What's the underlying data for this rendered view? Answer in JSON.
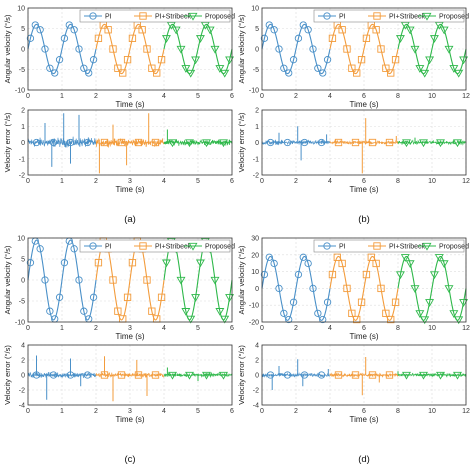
{
  "colors": {
    "pi": "#4a90c8",
    "pi_stribeck": "#f39c3c",
    "proposed": "#2eb84a",
    "axis": "#333333",
    "grid": "#dddddd"
  },
  "legend_entries": [
    "PI",
    "PI+Stribeck",
    "Proposed"
  ],
  "panels": [
    {
      "id": "a",
      "caption": "(a)",
      "top": {
        "type": "line",
        "ylabel": "Angular velocity (°/s)",
        "xlabel": "Time (s)",
        "xlim": [
          0,
          6
        ],
        "ylim": [
          -10,
          10
        ],
        "xticks": [
          "0",
          "1",
          "2",
          "3",
          "4",
          "5",
          "6"
        ],
        "yticks": [
          "10",
          "5",
          "0",
          "-5",
          "-10"
        ],
        "yticks_values": [
          10,
          5,
          0,
          -5,
          -10
        ],
        "amplitude": 6,
        "frequency_hz": 1,
        "legend": true,
        "series": [
          {
            "name": "PI",
            "x_range": [
              0,
              2
            ],
            "color_key": "pi",
            "marker": "circle"
          },
          {
            "name": "PI+Stribeck",
            "x_range": [
              2,
              4
            ],
            "color_key": "pi_stribeck",
            "marker": "square"
          },
          {
            "name": "Proposed",
            "x_range": [
              4,
              6
            ],
            "color_key": "proposed",
            "marker": "triangle"
          }
        ]
      },
      "bottom": {
        "type": "line",
        "ylabel": "Velocity error (°/s)",
        "xlabel": "Time (s)",
        "xlim": [
          0,
          6
        ],
        "ylim": [
          -2,
          2
        ],
        "xticks": [
          "0",
          "1",
          "2",
          "3",
          "4",
          "5",
          "6"
        ],
        "yticks": [
          "2",
          "1",
          "0",
          "-1",
          "-2"
        ],
        "yticks_values": [
          2,
          1,
          0,
          -1,
          -2
        ],
        "noise": [
          0.25,
          0.2,
          0.15
        ],
        "spikes": [
          [
            0.5,
            1.2
          ],
          [
            0.7,
            -1.5
          ],
          [
            1.05,
            1.8
          ],
          [
            1.25,
            -1.3
          ],
          [
            1.5,
            1.7
          ],
          [
            2.1,
            -1.9
          ],
          [
            2.5,
            1.1
          ],
          [
            2.9,
            -1.4
          ],
          [
            3.55,
            1.8
          ],
          [
            4.1,
            0.8
          ]
        ]
      }
    },
    {
      "id": "b",
      "caption": "(b)",
      "top": {
        "type": "line",
        "ylabel": "Angular velocity (°/s)",
        "xlabel": "Time (s)",
        "xlim": [
          0,
          12
        ],
        "ylim": [
          -10,
          10
        ],
        "xticks": [
          "0",
          "2",
          "4",
          "6",
          "8",
          "10",
          "12"
        ],
        "yticks": [
          "10",
          "5",
          "0",
          "-5",
          "-10"
        ],
        "yticks_values": [
          10,
          5,
          0,
          -5,
          -10
        ],
        "amplitude": 6,
        "frequency_hz": 0.5,
        "legend": true,
        "series": [
          {
            "name": "PI",
            "x_range": [
              0,
              4
            ],
            "color_key": "pi",
            "marker": "circle"
          },
          {
            "name": "PI+Stribeck",
            "x_range": [
              4,
              8
            ],
            "color_key": "pi_stribeck",
            "marker": "square"
          },
          {
            "name": "Proposed",
            "x_range": [
              8,
              12
            ],
            "color_key": "proposed",
            "marker": "triangle"
          }
        ]
      },
      "bottom": {
        "type": "line",
        "ylabel": "Velocity error (°/s)",
        "xlabel": "Time (s)",
        "xlim": [
          0,
          12
        ],
        "ylim": [
          -2,
          2
        ],
        "xticks": [
          "0",
          "2",
          "4",
          "6",
          "8",
          "10",
          "12"
        ],
        "yticks": [
          "2",
          "1",
          "0",
          "-1",
          "-2"
        ],
        "yticks_values": [
          2,
          1,
          0,
          -1,
          -2
        ],
        "noise": [
          0.12,
          0.1,
          0.1
        ],
        "spikes": [
          [
            1.0,
            0.6
          ],
          [
            2.1,
            1.0
          ],
          [
            2.3,
            -1.1
          ],
          [
            3.8,
            0.5
          ],
          [
            5.9,
            -1.9
          ],
          [
            6.1,
            1.5
          ],
          [
            7.9,
            0.4
          ],
          [
            9.0,
            0.3
          ]
        ]
      }
    },
    {
      "id": "c",
      "caption": "(c)",
      "top": {
        "type": "line",
        "ylabel": "Angular velocity (°/s)",
        "xlabel": "Time (s)",
        "xlim": [
          0,
          6
        ],
        "ylim": [
          -10,
          10
        ],
        "xticks": [
          "0",
          "1",
          "2",
          "3",
          "4",
          "5",
          "6"
        ],
        "yticks": [
          "10",
          "5",
          "0",
          "-5",
          "-10"
        ],
        "yticks_values": [
          10,
          5,
          0,
          -5,
          -10
        ],
        "amplitude": 9.5,
        "frequency_hz": 1,
        "legend": true,
        "series": [
          {
            "name": "PI",
            "x_range": [
              0,
              2
            ],
            "color_key": "pi",
            "marker": "circle"
          },
          {
            "name": "PI+Stribeck",
            "x_range": [
              2,
              4
            ],
            "color_key": "pi_stribeck",
            "marker": "square"
          },
          {
            "name": "Proposed",
            "x_range": [
              4,
              6
            ],
            "color_key": "proposed",
            "marker": "triangle"
          }
        ]
      },
      "bottom": {
        "type": "line",
        "ylabel": "Velocity error (°/s)",
        "xlabel": "Time (s)",
        "xlim": [
          0,
          6
        ],
        "ylim": [
          -4,
          4
        ],
        "xticks": [
          "0",
          "1",
          "2",
          "3",
          "4",
          "5",
          "6"
        ],
        "yticks": [
          "4",
          "2",
          "0",
          "-2",
          "-4"
        ],
        "yticks_values": [
          4,
          2,
          0,
          -2,
          -4
        ],
        "noise": [
          0.3,
          0.25,
          0.2
        ],
        "spikes": [
          [
            0.25,
            2.6
          ],
          [
            0.55,
            -3.3
          ],
          [
            1.25,
            2.2
          ],
          [
            1.55,
            -1.5
          ],
          [
            2.25,
            2.5
          ],
          [
            2.5,
            -3.5
          ],
          [
            3.2,
            2.0
          ],
          [
            3.5,
            -2.8
          ],
          [
            4.1,
            1.0
          ],
          [
            5.0,
            -0.8
          ]
        ]
      }
    },
    {
      "id": "d",
      "caption": "(d)",
      "top": {
        "type": "line",
        "ylabel": "Angular velocity (°/s)",
        "xlabel": "Time (s)",
        "xlim": [
          0,
          12
        ],
        "ylim": [
          -20,
          30
        ],
        "xticks": [
          "0",
          "2",
          "4",
          "6",
          "8",
          "10",
          "12"
        ],
        "yticks": [
          "30",
          "20",
          "10",
          "0",
          "-10",
          "-20"
        ],
        "yticks_values": [
          30,
          20,
          10,
          0,
          -10,
          -20
        ],
        "amplitude": 19,
        "frequency_hz": 0.5,
        "legend": true,
        "series": [
          {
            "name": "PI",
            "x_range": [
              0,
              4
            ],
            "color_key": "pi",
            "marker": "circle"
          },
          {
            "name": "PI+Stribeck",
            "x_range": [
              4,
              8
            ],
            "color_key": "pi_stribeck",
            "marker": "square"
          },
          {
            "name": "Proposed",
            "x_range": [
              8,
              12
            ],
            "color_key": "proposed",
            "marker": "triangle"
          }
        ]
      },
      "bottom": {
        "type": "line",
        "ylabel": "Velocity error (°/s)",
        "xlabel": "Time (s)",
        "xlim": [
          0,
          12
        ],
        "ylim": [
          -4,
          4
        ],
        "xticks": [
          "0",
          "2",
          "4",
          "6",
          "8",
          "10",
          "12"
        ],
        "yticks": [
          "4",
          "2",
          "0",
          "-2",
          "-4"
        ],
        "yticks_values": [
          4,
          2,
          0,
          -2,
          -4
        ],
        "noise": [
          0.2,
          0.2,
          0.18
        ],
        "spikes": [
          [
            0.6,
            -2.0
          ],
          [
            1.0,
            1.2
          ],
          [
            2.1,
            2.1
          ],
          [
            2.4,
            -1.5
          ],
          [
            3.9,
            0.8
          ],
          [
            5.9,
            -2.7
          ],
          [
            6.1,
            2.4
          ],
          [
            6.9,
            -1.0
          ],
          [
            8.0,
            0.5
          ]
        ]
      }
    }
  ]
}
